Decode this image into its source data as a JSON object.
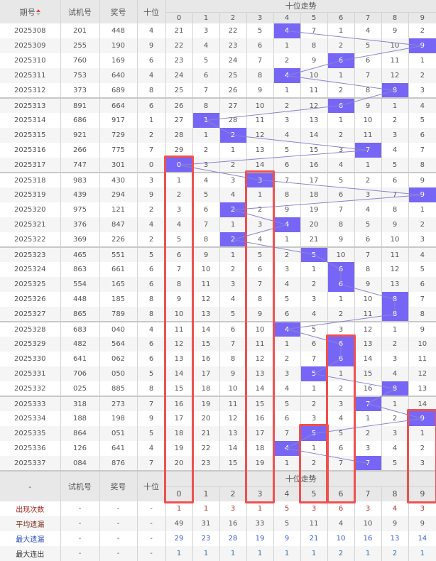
{
  "header": {
    "issue_label": "期号",
    "test_label": "试机号",
    "prize_label": "奖号",
    "tens_label": "十位",
    "trend_label": "十位走势",
    "digits": [
      "0",
      "1",
      "2",
      "3",
      "4",
      "5",
      "6",
      "7",
      "8",
      "9"
    ]
  },
  "colors": {
    "hit": "#7766f6",
    "line": "#8a84d0",
    "highlight_box": "#f05050"
  },
  "rows": [
    {
      "issue": "2025308",
      "test": "201",
      "prize": "448",
      "tens": "4",
      "trend": [
        21,
        3,
        22,
        5,
        4,
        7,
        1,
        4,
        9,
        2
      ]
    },
    {
      "issue": "2025309",
      "test": "255",
      "prize": "190",
      "tens": "9",
      "trend": [
        22,
        4,
        23,
        6,
        1,
        8,
        2,
        5,
        10,
        9
      ]
    },
    {
      "issue": "2025310",
      "test": "760",
      "prize": "169",
      "tens": "6",
      "trend": [
        23,
        5,
        24,
        7,
        2,
        9,
        6,
        6,
        11,
        1
      ]
    },
    {
      "issue": "2025311",
      "test": "753",
      "prize": "640",
      "tens": "4",
      "trend": [
        24,
        6,
        25,
        8,
        4,
        10,
        1,
        7,
        12,
        2
      ]
    },
    {
      "issue": "2025312",
      "test": "373",
      "prize": "689",
      "tens": "8",
      "trend": [
        25,
        7,
        26,
        9,
        1,
        11,
        2,
        8,
        8,
        3
      ]
    },
    {
      "issue": "2025313",
      "test": "891",
      "prize": "664",
      "tens": "6",
      "trend": [
        26,
        8,
        27,
        10,
        2,
        12,
        6,
        9,
        1,
        4
      ]
    },
    {
      "issue": "2025314",
      "test": "686",
      "prize": "917",
      "tens": "1",
      "trend": [
        27,
        1,
        28,
        11,
        3,
        13,
        1,
        10,
        2,
        5
      ]
    },
    {
      "issue": "2025315",
      "test": "921",
      "prize": "729",
      "tens": "2",
      "trend": [
        28,
        1,
        2,
        12,
        4,
        14,
        2,
        11,
        3,
        6
      ]
    },
    {
      "issue": "2025316",
      "test": "266",
      "prize": "775",
      "tens": "7",
      "trend": [
        29,
        2,
        1,
        13,
        5,
        15,
        3,
        7,
        4,
        7
      ]
    },
    {
      "issue": "2025317",
      "test": "747",
      "prize": "301",
      "tens": "0",
      "trend": [
        0,
        3,
        2,
        14,
        6,
        16,
        4,
        1,
        5,
        8
      ]
    },
    {
      "issue": "2025318",
      "test": "983",
      "prize": "430",
      "tens": "3",
      "trend": [
        1,
        4,
        3,
        3,
        7,
        17,
        5,
        2,
        6,
        9
      ]
    },
    {
      "issue": "2025319",
      "test": "439",
      "prize": "294",
      "tens": "9",
      "trend": [
        2,
        5,
        4,
        1,
        8,
        18,
        6,
        3,
        7,
        9
      ]
    },
    {
      "issue": "2025320",
      "test": "975",
      "prize": "121",
      "tens": "2",
      "trend": [
        3,
        6,
        2,
        2,
        9,
        19,
        7,
        4,
        8,
        1
      ]
    },
    {
      "issue": "2025321",
      "test": "376",
      "prize": "847",
      "tens": "4",
      "trend": [
        4,
        7,
        1,
        3,
        4,
        20,
        8,
        5,
        9,
        2
      ]
    },
    {
      "issue": "2025322",
      "test": "369",
      "prize": "226",
      "tens": "2",
      "trend": [
        5,
        8,
        2,
        4,
        1,
        21,
        9,
        6,
        10,
        3
      ]
    },
    {
      "issue": "2025323",
      "test": "465",
      "prize": "551",
      "tens": "5",
      "trend": [
        6,
        9,
        1,
        5,
        2,
        5,
        10,
        7,
        11,
        4
      ]
    },
    {
      "issue": "2025324",
      "test": "863",
      "prize": "661",
      "tens": "6",
      "trend": [
        7,
        10,
        2,
        6,
        3,
        1,
        6,
        8,
        12,
        5
      ]
    },
    {
      "issue": "2025325",
      "test": "554",
      "prize": "165",
      "tens": "6",
      "trend": [
        8,
        11,
        3,
        7,
        4,
        2,
        6,
        9,
        13,
        6
      ]
    },
    {
      "issue": "2025326",
      "test": "448",
      "prize": "185",
      "tens": "8",
      "trend": [
        9,
        12,
        4,
        8,
        5,
        3,
        1,
        10,
        8,
        7
      ]
    },
    {
      "issue": "2025327",
      "test": "865",
      "prize": "789",
      "tens": "8",
      "trend": [
        10,
        13,
        5,
        9,
        6,
        4,
        2,
        11,
        8,
        8
      ]
    },
    {
      "issue": "2025328",
      "test": "683",
      "prize": "040",
      "tens": "4",
      "trend": [
        11,
        14,
        6,
        10,
        4,
        5,
        3,
        12,
        1,
        9
      ]
    },
    {
      "issue": "2025329",
      "test": "482",
      "prize": "564",
      "tens": "6",
      "trend": [
        12,
        15,
        7,
        11,
        1,
        6,
        6,
        13,
        2,
        10
      ]
    },
    {
      "issue": "2025330",
      "test": "641",
      "prize": "062",
      "tens": "6",
      "trend": [
        13,
        16,
        8,
        12,
        2,
        7,
        6,
        14,
        3,
        11
      ]
    },
    {
      "issue": "2025331",
      "test": "706",
      "prize": "050",
      "tens": "5",
      "trend": [
        14,
        17,
        9,
        13,
        3,
        5,
        1,
        15,
        4,
        12
      ]
    },
    {
      "issue": "2025332",
      "test": "025",
      "prize": "885",
      "tens": "8",
      "trend": [
        15,
        18,
        10,
        14,
        4,
        1,
        2,
        16,
        8,
        13
      ]
    },
    {
      "issue": "2025333",
      "test": "318",
      "prize": "273",
      "tens": "7",
      "trend": [
        16,
        19,
        11,
        15,
        5,
        2,
        3,
        7,
        1,
        14
      ]
    },
    {
      "issue": "2025334",
      "test": "188",
      "prize": "198",
      "tens": "9",
      "trend": [
        17,
        20,
        12,
        16,
        6,
        3,
        4,
        1,
        2,
        9
      ]
    },
    {
      "issue": "2025335",
      "test": "864",
      "prize": "051",
      "tens": "5",
      "trend": [
        18,
        21,
        13,
        17,
        7,
        5,
        5,
        2,
        3,
        1
      ]
    },
    {
      "issue": "2025336",
      "test": "126",
      "prize": "641",
      "tens": "4",
      "trend": [
        19,
        22,
        14,
        18,
        4,
        1,
        6,
        3,
        4,
        2
      ]
    },
    {
      "issue": "2025337",
      "test": "084",
      "prize": "876",
      "tens": "7",
      "trend": [
        20,
        23,
        15,
        19,
        1,
        2,
        7,
        7,
        5,
        3
      ]
    }
  ],
  "footer_header": {
    "issue_label": "-",
    "test_label": "试机号",
    "prize_label": "奖号",
    "tens_label": "十位",
    "trend_label": "十位走势"
  },
  "stats": [
    {
      "label": "出现次数",
      "test": "-",
      "prize": "-",
      "tens": "-",
      "values": [
        1,
        1,
        3,
        1,
        5,
        3,
        6,
        3,
        4,
        3
      ]
    },
    {
      "label": "平均遗漏",
      "test": "-",
      "prize": "-",
      "tens": "-",
      "values": [
        49,
        31,
        16,
        33,
        5,
        11,
        4,
        10,
        9,
        9
      ]
    },
    {
      "label": "最大遗漏",
      "test": "-",
      "prize": "-",
      "tens": "-",
      "values": [
        29,
        23,
        28,
        19,
        9,
        21,
        10,
        16,
        13,
        14
      ]
    },
    {
      "label": "最大连出",
      "test": "-",
      "prize": "-",
      "tens": "-",
      "values": [
        1,
        1,
        1,
        1,
        1,
        1,
        2,
        1,
        2,
        1
      ]
    }
  ]
}
